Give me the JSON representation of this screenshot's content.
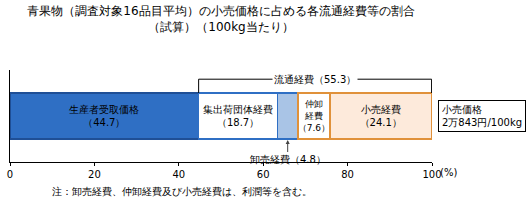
{
  "chart_data": {
    "type": "bar",
    "orientation": "horizontal",
    "stacked": true,
    "data_labels": true,
    "tick_labels": "x",
    "grid": false,
    "title": "青果物（調査対象16品目平均）の小売価格に占める各流通経費等の割合",
    "subtitle": "（試算）（100kg当たり）",
    "x_label": "(%)",
    "xlim": [
      0,
      100
    ],
    "xticks": [
      0,
      20,
      40,
      60,
      80,
      100
    ],
    "series": [
      {
        "name": "生産者受取価格",
        "color": "#2f6fc4",
        "values": [
          44.7
        ],
        "value_labels": [
          "（44.7）"
        ]
      },
      {
        "name": "集出荷団体経費",
        "color": "#ffffff",
        "values": [
          18.7
        ],
        "value_labels": [
          "（18.7）"
        ]
      },
      {
        "name": "卸売経費",
        "color": "#a9c4e6",
        "values": [
          4.8
        ],
        "value_labels": [
          "（4.8）"
        ]
      },
      {
        "name": "仲卸経費",
        "color": "#ffffff",
        "values": [
          7.6
        ],
        "value_labels": [
          "（7.6）"
        ]
      },
      {
        "name": "小売経費",
        "color": "#fdeadb",
        "values": [
          24.1
        ],
        "value_labels": [
          "（24.1）"
        ]
      }
    ],
    "bracket_label": "流通経費（55.3）",
    "price_box": [
      "小売価格",
      "2万843円/100kg"
    ],
    "note": "注：卸売経費、仲卸経費及び小売経費は、利潤等を含む。"
  }
}
